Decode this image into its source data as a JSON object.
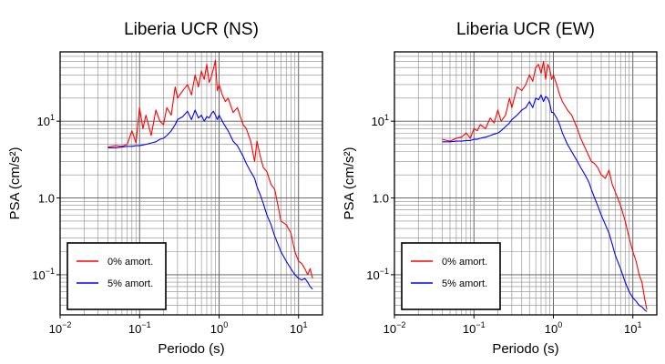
{
  "chart_data": [
    {
      "type": "line",
      "title": "Liberia UCR (NS)",
      "xlabel": "Periodo (s)",
      "ylabel": "PSA (cm/s²)",
      "xscale": "log",
      "yscale": "log",
      "xlim": [
        0.01,
        20
      ],
      "ylim": [
        0.03,
        80
      ],
      "grid": true,
      "legend_position": "bottom-left",
      "xticks": [
        {
          "base": "10",
          "exp": "−2",
          "value": 0.01
        },
        {
          "base": "10",
          "exp": "−1",
          "value": 0.1
        },
        {
          "base": "10",
          "exp": "0",
          "value": 1
        },
        {
          "base": "10",
          "exp": "1",
          "value": 10
        }
      ],
      "yticks": [
        {
          "base": "10",
          "exp": "−1",
          "value": 0.1
        },
        {
          "base": "1.0",
          "exp": "",
          "value": 1
        },
        {
          "base": "10",
          "exp": "1",
          "value": 10
        }
      ],
      "series": [
        {
          "name": "0% amort.",
          "color": "#ff0000",
          "x": [
            0.04,
            0.05,
            0.06,
            0.07,
            0.08,
            0.09,
            0.1,
            0.11,
            0.12,
            0.14,
            0.16,
            0.18,
            0.2,
            0.22,
            0.25,
            0.28,
            0.3,
            0.35,
            0.4,
            0.45,
            0.5,
            0.55,
            0.6,
            0.65,
            0.7,
            0.75,
            0.8,
            0.85,
            0.9,
            0.95,
            1.0,
            1.1,
            1.2,
            1.3,
            1.5,
            1.7,
            2.0,
            2.2,
            2.5,
            2.8,
            3.0,
            3.3,
            3.6,
            4.0,
            4.5,
            5.0,
            5.5,
            6.0,
            7.0,
            8.0,
            9.0,
            10,
            11,
            12,
            13,
            14,
            15
          ],
          "y": [
            4.6,
            4.8,
            4.7,
            5.0,
            7.5,
            5.2,
            15,
            8,
            12,
            6.5,
            14,
            10,
            9,
            15,
            12,
            28,
            20,
            25,
            30,
            22,
            40,
            28,
            45,
            35,
            55,
            32,
            38,
            48,
            62,
            25,
            30,
            22,
            18,
            20,
            13,
            15,
            9,
            8,
            5.5,
            3,
            5.5,
            3.5,
            2.5,
            2.2,
            1.5,
            1.3,
            0.8,
            0.5,
            0.45,
            0.35,
            0.2,
            0.15,
            0.14,
            0.12,
            0.1,
            0.12,
            0.09
          ]
        },
        {
          "name": "5% amort.",
          "color": "#0000ff",
          "x": [
            0.04,
            0.05,
            0.06,
            0.07,
            0.08,
            0.09,
            0.1,
            0.11,
            0.12,
            0.14,
            0.16,
            0.18,
            0.2,
            0.22,
            0.25,
            0.28,
            0.3,
            0.35,
            0.4,
            0.45,
            0.5,
            0.55,
            0.6,
            0.65,
            0.7,
            0.75,
            0.8,
            0.85,
            0.9,
            0.95,
            1.0,
            1.1,
            1.2,
            1.3,
            1.5,
            1.7,
            2.0,
            2.2,
            2.5,
            2.8,
            3.0,
            3.3,
            3.6,
            4.0,
            4.5,
            5.0,
            5.5,
            6.0,
            7.0,
            8.0,
            9.0,
            10,
            11,
            12,
            13,
            14,
            15
          ],
          "y": [
            4.5,
            4.5,
            4.6,
            4.7,
            4.7,
            4.8,
            4.8,
            4.9,
            5.0,
            5.2,
            5.4,
            5.8,
            6.0,
            6.5,
            7.5,
            9.0,
            10.5,
            11.5,
            13.5,
            10.5,
            14,
            11,
            12,
            10,
            11.5,
            11,
            12.5,
            13.5,
            12,
            10.5,
            12,
            10,
            8.5,
            7.5,
            5.5,
            4.8,
            3.5,
            2.8,
            2.2,
            1.8,
            1.4,
            1.1,
            0.85,
            0.6,
            0.45,
            0.32,
            0.25,
            0.2,
            0.15,
            0.12,
            0.1,
            0.09,
            0.085,
            0.09,
            0.08,
            0.07,
            0.065
          ]
        }
      ]
    },
    {
      "type": "line",
      "title": "Liberia UCR (EW)",
      "xlabel": "Periodo (s)",
      "ylabel": "PSA (cm/s²)",
      "xscale": "log",
      "yscale": "log",
      "xlim": [
        0.01,
        20
      ],
      "ylim": [
        0.03,
        80
      ],
      "grid": true,
      "legend_position": "bottom-left",
      "xticks": [
        {
          "base": "10",
          "exp": "−2",
          "value": 0.01
        },
        {
          "base": "10",
          "exp": "−1",
          "value": 0.1
        },
        {
          "base": "10",
          "exp": "0",
          "value": 1
        },
        {
          "base": "10",
          "exp": "1",
          "value": 10
        }
      ],
      "yticks": [
        {
          "base": "10",
          "exp": "−1",
          "value": 0.1
        },
        {
          "base": "1.0",
          "exp": "",
          "value": 1
        },
        {
          "base": "10",
          "exp": "1",
          "value": 10
        }
      ],
      "series": [
        {
          "name": "0% amort.",
          "color": "#ff0000",
          "x": [
            0.04,
            0.05,
            0.06,
            0.07,
            0.08,
            0.09,
            0.1,
            0.11,
            0.12,
            0.14,
            0.16,
            0.18,
            0.2,
            0.22,
            0.25,
            0.28,
            0.3,
            0.35,
            0.4,
            0.45,
            0.5,
            0.55,
            0.6,
            0.65,
            0.7,
            0.75,
            0.8,
            0.85,
            0.9,
            0.95,
            1.0,
            1.1,
            1.2,
            1.3,
            1.5,
            1.7,
            2.0,
            2.2,
            2.5,
            2.8,
            3.0,
            3.3,
            3.6,
            4.0,
            4.5,
            5.0,
            5.5,
            6.0,
            7.0,
            8.0,
            9.0,
            10,
            11,
            12,
            13,
            14,
            15
          ],
          "y": [
            5.8,
            5.5,
            6.0,
            6.2,
            7.0,
            6.0,
            8.0,
            7.5,
            9.0,
            8.0,
            11,
            9.5,
            14,
            10,
            12,
            20,
            15,
            28,
            25,
            30,
            40,
            33,
            50,
            55,
            42,
            60,
            35,
            55,
            48,
            35,
            40,
            30,
            22,
            18,
            14,
            12,
            8,
            6,
            4.5,
            3.5,
            3.0,
            2.8,
            2.5,
            2.0,
            1.8,
            2.3,
            1.5,
            1.2,
            0.8,
            0.5,
            0.3,
            0.2,
            0.15,
            0.1,
            0.08,
            0.05,
            0.035
          ]
        },
        {
          "name": "5% amort.",
          "color": "#0000ff",
          "x": [
            0.04,
            0.05,
            0.06,
            0.07,
            0.08,
            0.09,
            0.1,
            0.11,
            0.12,
            0.14,
            0.16,
            0.18,
            0.2,
            0.22,
            0.25,
            0.28,
            0.3,
            0.35,
            0.4,
            0.45,
            0.5,
            0.55,
            0.6,
            0.65,
            0.7,
            0.75,
            0.8,
            0.85,
            0.9,
            0.95,
            1.0,
            1.1,
            1.2,
            1.3,
            1.5,
            1.7,
            2.0,
            2.2,
            2.5,
            2.8,
            3.0,
            3.3,
            3.6,
            4.0,
            4.5,
            5.0,
            5.5,
            6.0,
            7.0,
            8.0,
            9.0,
            10,
            11,
            12,
            13,
            14,
            15
          ],
          "y": [
            5.4,
            5.4,
            5.5,
            5.5,
            5.6,
            5.6,
            5.8,
            5.8,
            6.0,
            6.2,
            6.5,
            6.8,
            7.0,
            7.5,
            8.5,
            9.5,
            10.5,
            12,
            14,
            15,
            18,
            15,
            20,
            19,
            22,
            18,
            21,
            20,
            17,
            13,
            13,
            11,
            9,
            7,
            5,
            4,
            3,
            2.5,
            2,
            1.6,
            1.3,
            1.0,
            0.8,
            0.6,
            0.45,
            0.35,
            0.25,
            0.18,
            0.12,
            0.08,
            0.06,
            0.05,
            0.045,
            0.04,
            0.038,
            0.035,
            0.033
          ]
        }
      ]
    }
  ]
}
